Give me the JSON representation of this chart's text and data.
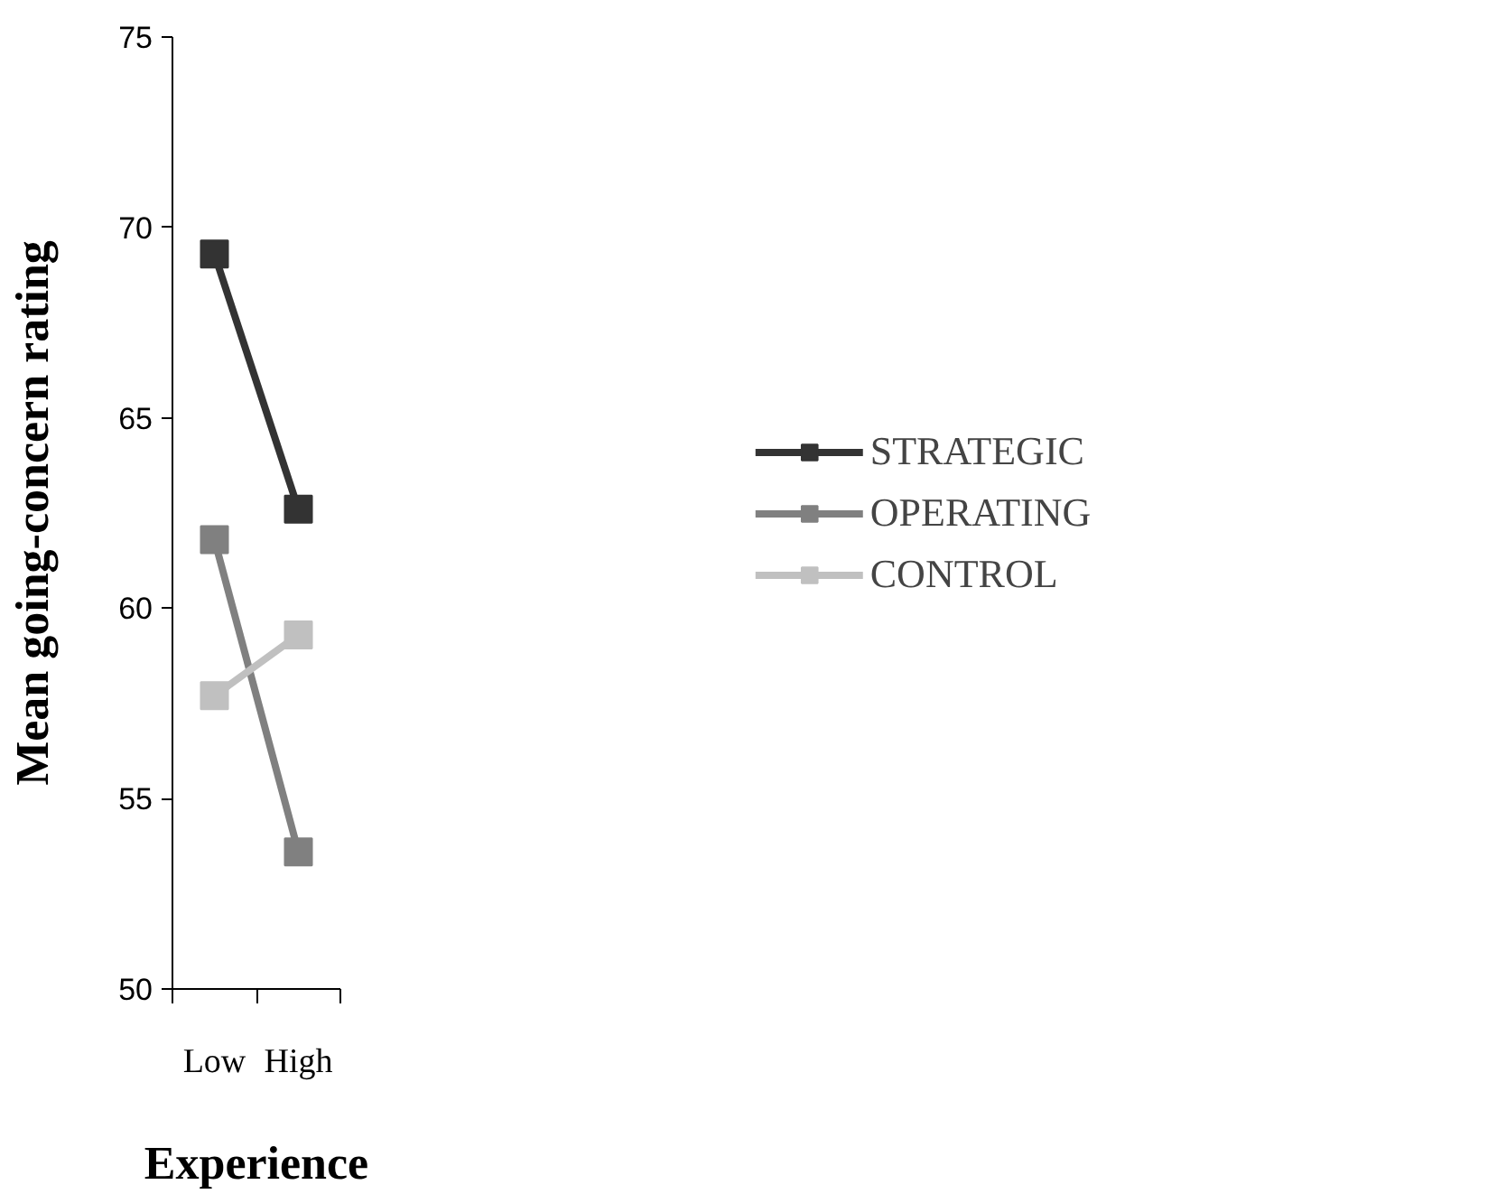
{
  "chart_data": {
    "type": "line",
    "xlabel": "Experience",
    "ylabel": "Mean going-concern rating",
    "categories": [
      "Low",
      "High"
    ],
    "series": [
      {
        "name": "STRATEGIC",
        "color": "#333333",
        "values": [
          69.3,
          62.6
        ]
      },
      {
        "name": "OPERATING",
        "color": "#808080",
        "values": [
          61.8,
          53.6
        ]
      },
      {
        "name": "CONTROL",
        "color": "#c0c0c0",
        "values": [
          57.7,
          59.3
        ]
      }
    ],
    "ylim": [
      50,
      75
    ],
    "yticks": [
      50,
      55,
      60,
      65,
      70,
      75
    ],
    "grid": false,
    "legend": "right",
    "marker": "square"
  }
}
